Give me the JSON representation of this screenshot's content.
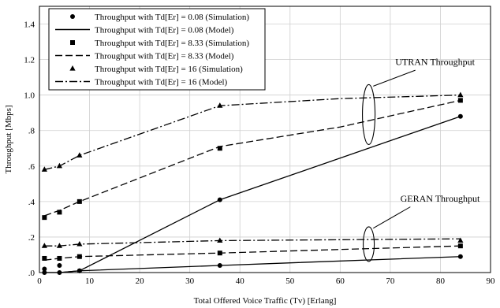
{
  "chart_data": {
    "type": "line",
    "xlabel": "Total Offered Voice Traffic (Tv) [Erlang]",
    "ylabel": "Throughput [Mbps]",
    "xlim": [
      0,
      90
    ],
    "ylim": [
      0,
      1.5
    ],
    "xticks": [
      0,
      10,
      20,
      30,
      40,
      50,
      60,
      70,
      80,
      90
    ],
    "xtick_labels": [
      "0",
      "10",
      "20",
      "30",
      "40",
      "50",
      "60",
      "70",
      "80",
      "90"
    ],
    "yticks": [
      0,
      0.2,
      0.4,
      0.6,
      0.8,
      1.0,
      1.2,
      1.4
    ],
    "ytick_labels": [
      ".0",
      ".2",
      ".4",
      ".6",
      ".8",
      "1.0",
      "1.2",
      "1.4"
    ],
    "grid": true,
    "legend_position": "top-left",
    "annotations": [
      {
        "text": "UTRAN Throughput",
        "x": 71,
        "y": 1.17
      },
      {
        "text": "GERAN Throughput",
        "x": 72,
        "y": 0.4
      }
    ],
    "series": [
      {
        "name": "Throughput with Td[Er] = 0.08 (Simulation)",
        "style": "marker",
        "marker": "circle",
        "x": [
          1,
          4,
          8,
          36,
          84
        ],
        "y": [
          0.02,
          0.04,
          0.01,
          0.41,
          0.88
        ]
      },
      {
        "name": "Throughput with Td[Er] = 0.08 (Model)",
        "style": "solid",
        "x": [
          1,
          4,
          8,
          36,
          84
        ],
        "y": [
          0.0,
          0.0,
          0.01,
          0.04,
          0.09
        ]
      },
      {
        "name": "Throughput with Td[Er] = 8.33 (Simulation)",
        "style": "marker",
        "marker": "square",
        "x": [
          1,
          4,
          8,
          36,
          84
        ],
        "y": [
          0.31,
          0.34,
          0.4,
          0.7,
          0.97
        ]
      },
      {
        "name": "Throughput with Td[Er] = 8.33 (Model)",
        "style": "dashed",
        "x": [
          1,
          4,
          8,
          36,
          84
        ],
        "y": [
          0.07,
          0.08,
          0.09,
          0.11,
          0.15
        ]
      },
      {
        "name": "Throughput with Td[Er] = 16 (Simulation)",
        "style": "marker",
        "marker": "triangle",
        "x": [
          1,
          4,
          8,
          36,
          84
        ],
        "y": [
          0.58,
          0.6,
          0.66,
          0.94,
          1.0
        ]
      },
      {
        "name": "Throughput with Td[Er] = 16 (Model)",
        "style": "dashdot",
        "x": [
          1,
          4,
          8,
          36,
          84
        ],
        "y": [
          0.15,
          0.15,
          0.16,
          0.18,
          0.19
        ]
      }
    ],
    "secondary_curves": [
      {
        "series": "Throughput with Td[Er] = 0.08 (Model)",
        "style": "solid",
        "x": [
          1,
          4,
          8,
          36,
          84
        ],
        "y": [
          0.0,
          0.0,
          0.01,
          0.41,
          0.88
        ]
      },
      {
        "series": "Throughput with Td[Er] = 8.33 (Model)",
        "style": "dashed",
        "x": [
          1,
          4,
          8,
          36,
          60,
          84
        ],
        "y": [
          0.32,
          0.35,
          0.4,
          0.71,
          0.82,
          0.97
        ]
      },
      {
        "series": "Throughput with Td[Er] = 16 (Model)",
        "style": "dashdot",
        "x": [
          1,
          4,
          8,
          36,
          60,
          84
        ],
        "y": [
          0.58,
          0.6,
          0.66,
          0.94,
          0.98,
          1.0
        ]
      }
    ],
    "secondary_markers": [
      {
        "series": "Throughput with Td[Er] = 0.08 (Simulation)",
        "x": [
          1,
          4,
          8,
          36,
          84
        ],
        "y": [
          0.0,
          0.0,
          0.01,
          0.04,
          0.09
        ]
      },
      {
        "series": "Throughput with Td[Er] = 8.33 (Simulation)",
        "x": [
          1,
          4,
          8,
          36,
          84
        ],
        "y": [
          0.08,
          0.08,
          0.09,
          0.11,
          0.15
        ]
      },
      {
        "series": "Throughput with Td[Er] = 16 (Simulation)",
        "x": [
          1,
          4,
          8,
          36,
          84
        ],
        "y": [
          0.15,
          0.15,
          0.16,
          0.18,
          0.18
        ]
      }
    ]
  }
}
